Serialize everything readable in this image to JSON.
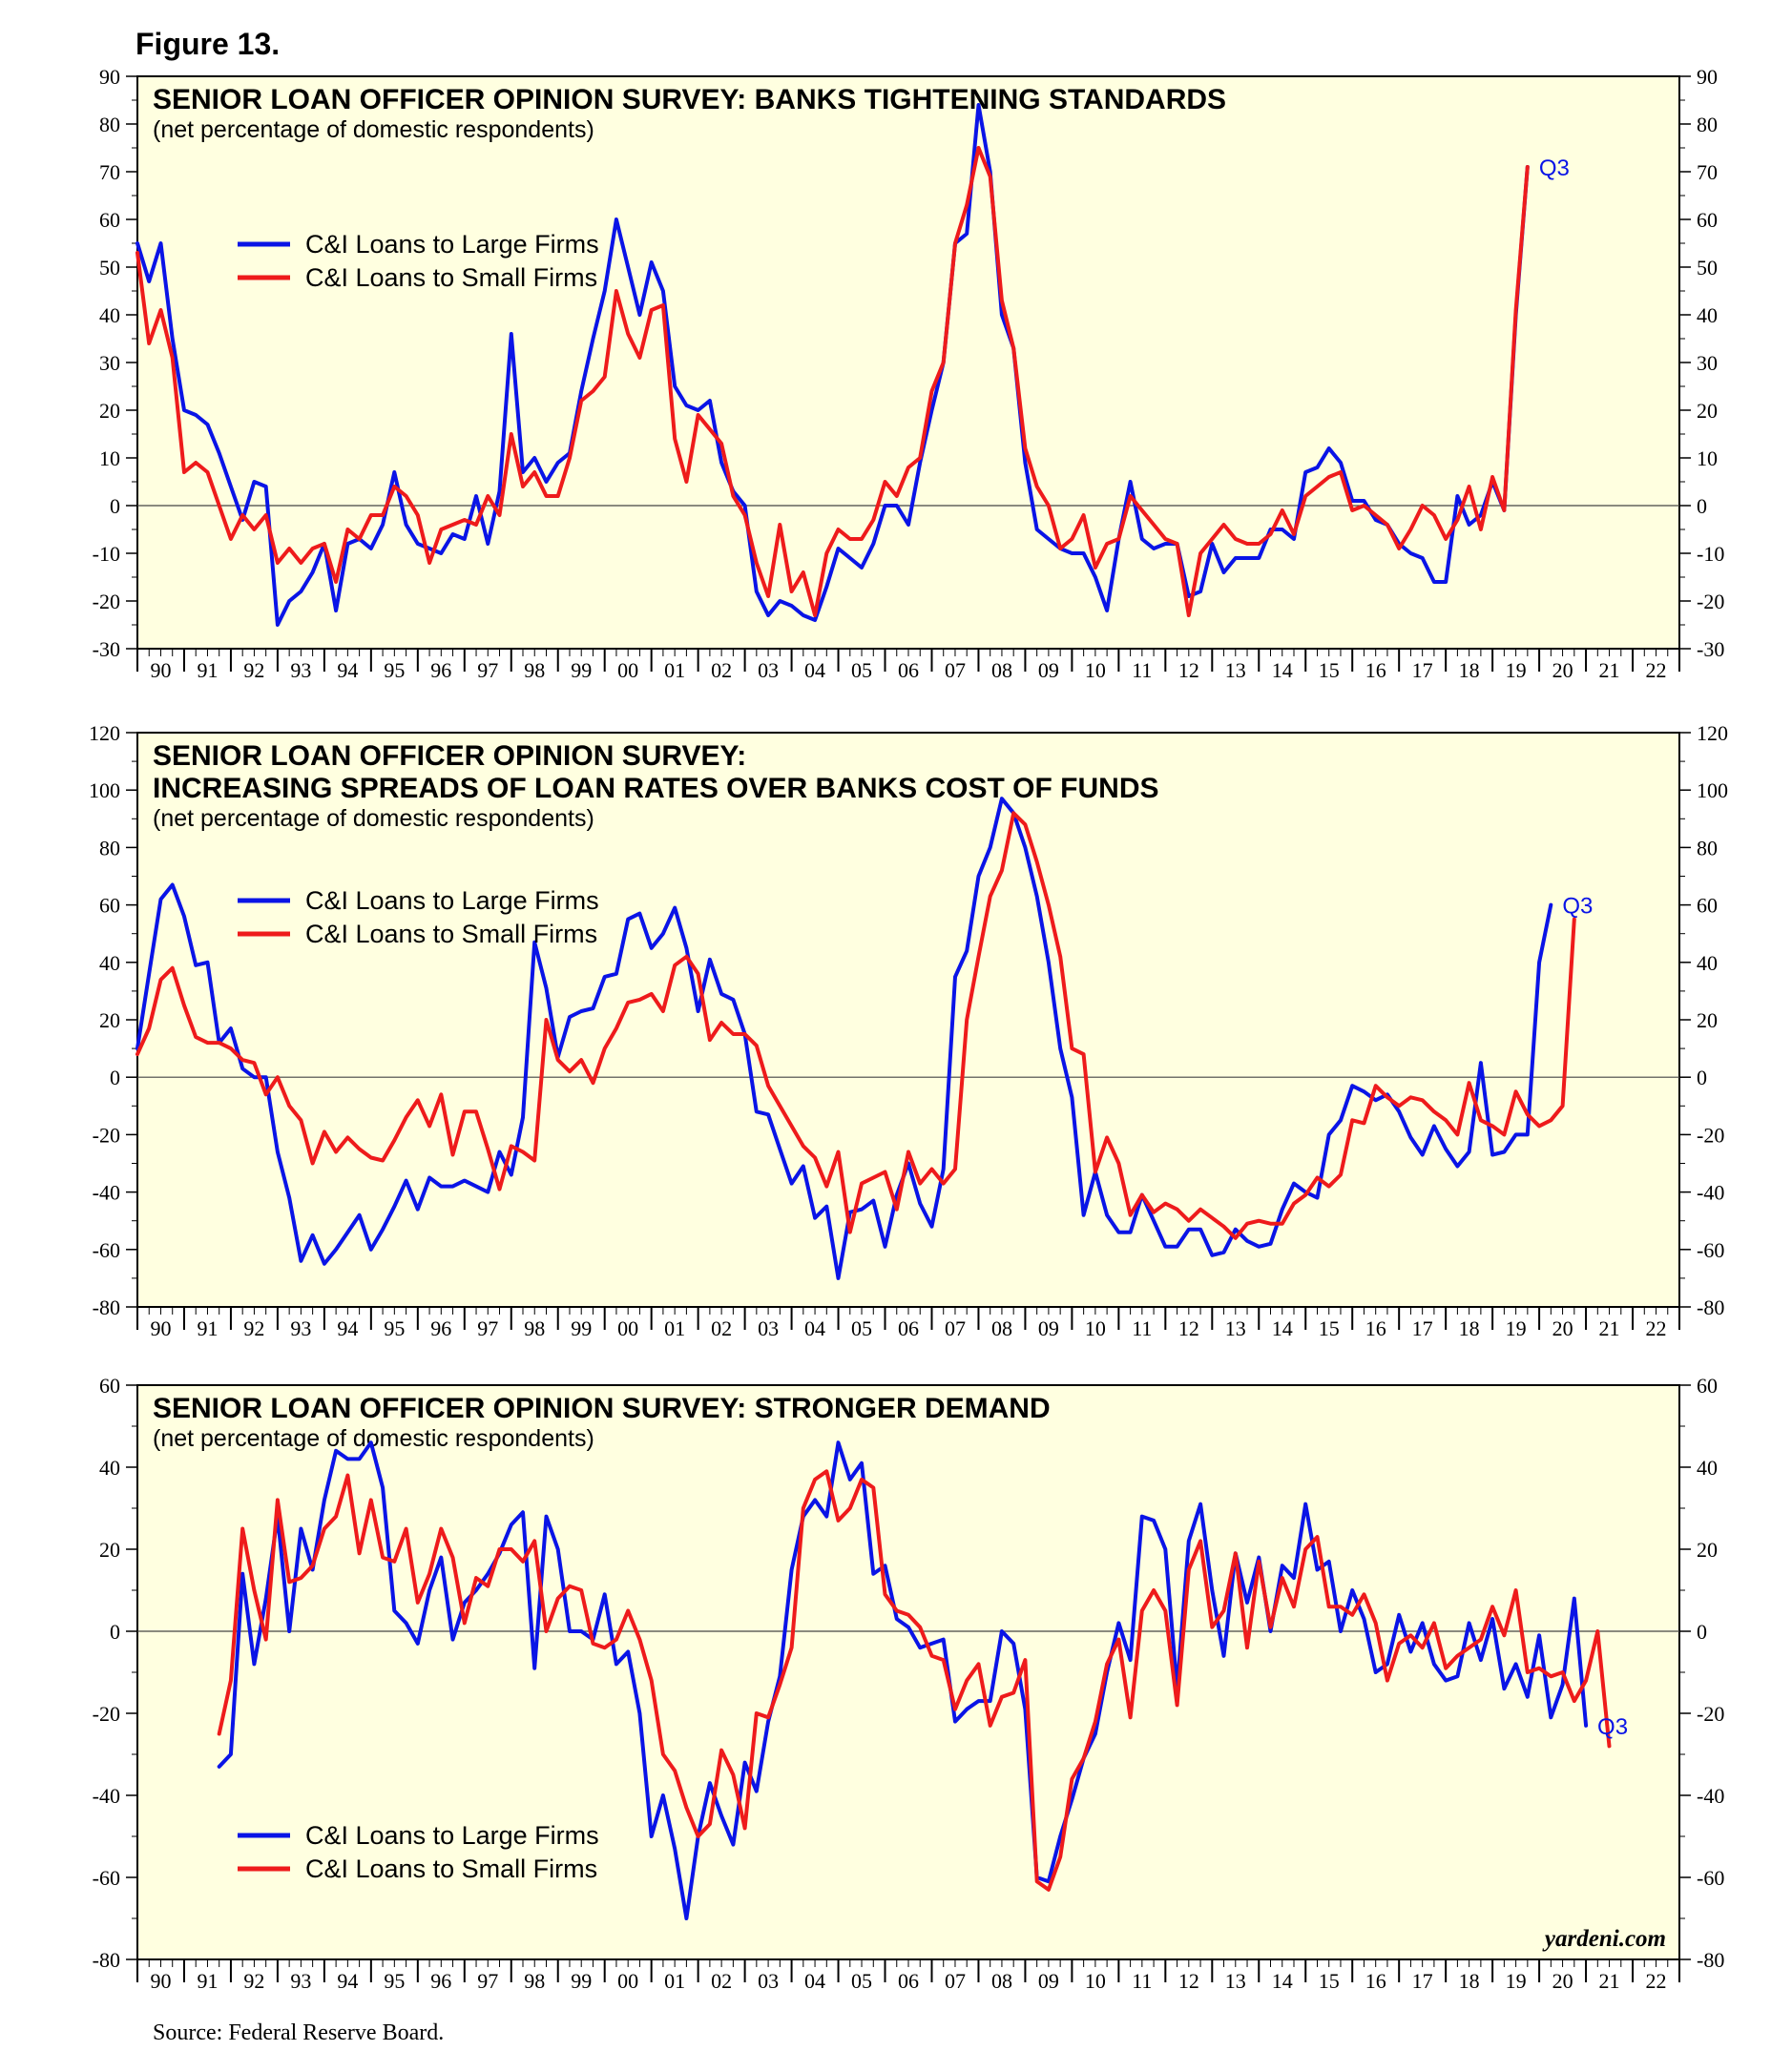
{
  "figure_label": "Figure 13.",
  "source": "Source: Federal Reserve Board.",
  "watermark": "yardeni.com",
  "colors": {
    "large": "#0a14e6",
    "small": "#ee1b1b",
    "plot_bg": "#ffffe0",
    "q3": "#0a14e6"
  },
  "chart_data": [
    {
      "type": "line",
      "title_lines": [
        "SENIOR LOAN OFFICER OPINION SURVEY: BANKS TIGHTENING STANDARDS"
      ],
      "subtitle": "(net percentage of domestic respondents)",
      "ylim": [
        -30,
        90
      ],
      "yticks": [
        -30,
        -20,
        -10,
        0,
        10,
        20,
        30,
        40,
        50,
        60,
        70,
        80,
        90
      ],
      "xlim": [
        1990,
        2023
      ],
      "xtick_labels": [
        "90",
        "91",
        "92",
        "93",
        "94",
        "95",
        "96",
        "97",
        "98",
        "99",
        "00",
        "01",
        "02",
        "03",
        "04",
        "05",
        "06",
        "07",
        "08",
        "09",
        "10",
        "11",
        "12",
        "13",
        "14",
        "15",
        "16",
        "17",
        "18",
        "19",
        "20",
        "21",
        "22"
      ],
      "legend": [
        "C&I Loans to Large Firms",
        "C&I Loans to Small Firms"
      ],
      "legend_position": "top-left",
      "annotation": "Q3",
      "series": [
        {
          "name": "C&I Loans to Large Firms",
          "color": "#0a14e6",
          "start": 1990.0,
          "step": 0.25,
          "values": [
            55,
            47,
            55,
            35,
            20,
            19,
            17,
            11,
            4,
            -3,
            5,
            4,
            -25,
            -20,
            -18,
            -14,
            -8,
            -22,
            -8,
            -7,
            -9,
            -4,
            7,
            -4,
            -8,
            -9,
            -10,
            -6,
            -7,
            2,
            -8,
            3,
            36,
            7,
            10,
            5,
            9,
            11,
            24,
            35,
            45,
            60,
            50,
            40,
            51,
            45,
            25,
            21,
            20,
            22,
            9,
            3,
            0,
            -18,
            -23,
            -20,
            -21,
            -23,
            -24,
            -17,
            -9,
            -11,
            -13,
            -8,
            0,
            0,
            -4,
            9,
            20,
            30,
            55,
            57,
            84,
            70,
            40,
            33,
            9,
            -5,
            -7,
            -9,
            -10,
            -10,
            -15,
            -22,
            -7,
            5,
            -7,
            -9,
            -8,
            -8,
            -19,
            -18,
            -8,
            -14,
            -11,
            -11,
            -11,
            -5,
            -5,
            -7,
            7,
            8,
            12,
            9,
            1,
            1,
            -3,
            -4,
            -8,
            -10,
            -11,
            -16,
            -16,
            2,
            -4,
            -2,
            5,
            -1,
            40,
            71
          ]
        },
        {
          "name": "C&I Loans to Small Firms",
          "color": "#ee1b1b",
          "start": 1990.0,
          "step": 0.25,
          "values": [
            53,
            34,
            41,
            31,
            7,
            9,
            7,
            0,
            -7,
            -2,
            -5,
            -2,
            -12,
            -9,
            -12,
            -9,
            -8,
            -16,
            -5,
            -7,
            -2,
            -2,
            4,
            2,
            -2,
            -12,
            -5,
            -4,
            -3,
            -4,
            2,
            -2,
            15,
            4,
            7,
            2,
            2,
            10,
            22,
            24,
            27,
            45,
            36,
            31,
            41,
            42,
            14,
            5,
            19,
            16,
            13,
            2,
            -2,
            -12,
            -19,
            -4,
            -18,
            -14,
            -23,
            -10,
            -5,
            -7,
            -7,
            -3,
            5,
            2,
            8,
            10,
            24,
            30,
            55,
            63,
            75,
            69,
            43,
            33,
            12,
            4,
            0,
            -9,
            -7,
            -2,
            -13,
            -8,
            -7,
            2,
            -1,
            -4,
            -7,
            -8,
            -23,
            -10,
            -7,
            -4,
            -7,
            -8,
            -8,
            -6,
            -1,
            -6,
            2,
            4,
            6,
            7,
            -1,
            0,
            -2,
            -4,
            -9,
            -5,
            0,
            -2,
            -7,
            -3,
            4,
            -5,
            6,
            -1,
            41,
            71
          ]
        }
      ]
    },
    {
      "type": "line",
      "title_lines": [
        "SENIOR LOAN OFFICER OPINION SURVEY:",
        "INCREASING SPREADS OF LOAN RATES OVER BANKS COST OF FUNDS"
      ],
      "subtitle": "(net percentage of domestic respondents)",
      "ylim": [
        -80,
        120
      ],
      "yticks": [
        -80,
        -60,
        -40,
        -20,
        0,
        20,
        40,
        60,
        80,
        100,
        120
      ],
      "xlim": [
        1990,
        2023
      ],
      "xtick_labels": [
        "90",
        "91",
        "92",
        "93",
        "94",
        "95",
        "96",
        "97",
        "98",
        "99",
        "00",
        "01",
        "02",
        "03",
        "04",
        "05",
        "06",
        "07",
        "08",
        "09",
        "10",
        "11",
        "12",
        "13",
        "14",
        "15",
        "16",
        "17",
        "18",
        "19",
        "20",
        "21",
        "22"
      ],
      "legend": [
        "C&I Loans to Large Firms",
        "C&I Loans to Small Firms"
      ],
      "legend_position": "top-left",
      "annotation": "Q3",
      "series": [
        {
          "name": "C&I Loans to Large Firms",
          "color": "#0a14e6",
          "start": 1990.0,
          "step": 0.25,
          "values": [
            10,
            36,
            62,
            67,
            56,
            39,
            40,
            12,
            17,
            3,
            0,
            0,
            -26,
            -42,
            -64,
            -55,
            -65,
            -60,
            -54,
            -48,
            -60,
            -53,
            -45,
            -36,
            -46,
            -35,
            -38,
            -38,
            -36,
            -38,
            -40,
            -26,
            -34,
            -14,
            47,
            31,
            7,
            21,
            23,
            24,
            35,
            36,
            55,
            57,
            45,
            50,
            59,
            45,
            23,
            41,
            29,
            27,
            15,
            -12,
            -13,
            -25,
            -37,
            -31,
            -49,
            -45,
            -70,
            -47,
            -46,
            -43,
            -59,
            -41,
            -30,
            -44,
            -52,
            -32,
            35,
            44,
            70,
            80,
            97,
            92,
            80,
            63,
            40,
            10,
            -7,
            -48,
            -33,
            -48,
            -54,
            -54,
            -41,
            -50,
            -59,
            -59,
            -53,
            -53,
            -62,
            -61,
            -53,
            -57,
            -59,
            -58,
            -46,
            -37,
            -40,
            -42,
            -20,
            -15,
            -3,
            -5,
            -8,
            -6,
            -12,
            -21,
            -27,
            -17,
            -25,
            -31,
            -26,
            5,
            -27,
            -26,
            -20,
            -20,
            40,
            60
          ]
        },
        {
          "name": "C&I Loans to Small Firms",
          "color": "#ee1b1b",
          "start": 1990.0,
          "step": 0.25,
          "values": [
            8,
            17,
            34,
            38,
            25,
            14,
            12,
            12,
            10,
            6,
            5,
            -6,
            0,
            -10,
            -15,
            -30,
            -19,
            -26,
            -21,
            -25,
            -28,
            -29,
            -22,
            -14,
            -8,
            -17,
            -6,
            -27,
            -12,
            -12,
            -25,
            -39,
            -24,
            -26,
            -29,
            20,
            6,
            2,
            6,
            -2,
            10,
            17,
            26,
            27,
            29,
            23,
            39,
            42,
            36,
            13,
            19,
            15,
            15,
            11,
            -3,
            -10,
            -17,
            -24,
            -28,
            -38,
            -26,
            -54,
            -37,
            -35,
            -33,
            -46,
            -26,
            -37,
            -32,
            -37,
            -32,
            20,
            42,
            63,
            72,
            92,
            88,
            75,
            60,
            42,
            10,
            8,
            -33,
            -21,
            -30,
            -48,
            -41,
            -47,
            -44,
            -46,
            -50,
            -46,
            -49,
            -52,
            -56,
            -51,
            -50,
            -51,
            -51,
            -44,
            -41,
            -35,
            -38,
            -34,
            -15,
            -16,
            -3,
            -7,
            -10,
            -7,
            -8,
            -12,
            -15,
            -20,
            -2,
            -15,
            -17,
            -20,
            -5,
            -13,
            -17,
            -15,
            -10,
            55
          ]
        }
      ]
    },
    {
      "type": "line",
      "title_lines": [
        "SENIOR LOAN OFFICER OPINION SURVEY: STRONGER DEMAND"
      ],
      "subtitle": "(net percentage of domestic respondents)",
      "ylim": [
        -80,
        60
      ],
      "yticks": [
        -80,
        -60,
        -40,
        -20,
        0,
        20,
        40,
        60
      ],
      "xlim": [
        1990,
        2023
      ],
      "xtick_labels": [
        "90",
        "91",
        "92",
        "93",
        "94",
        "95",
        "96",
        "97",
        "98",
        "99",
        "00",
        "01",
        "02",
        "03",
        "04",
        "05",
        "06",
        "07",
        "08",
        "09",
        "10",
        "11",
        "12",
        "13",
        "14",
        "15",
        "16",
        "17",
        "18",
        "19",
        "20",
        "21",
        "22"
      ],
      "legend": [
        "C&I Loans to Large Firms",
        "C&I Loans to Small Firms"
      ],
      "legend_position": "bottom-left",
      "annotation": "Q3",
      "series": [
        {
          "name": "C&I Loans to Large Firms",
          "color": "#0a14e6",
          "start": 1991.75,
          "step": 0.25,
          "values": [
            -33,
            -30,
            14,
            -8,
            8,
            28,
            0,
            25,
            15,
            32,
            44,
            42,
            42,
            46,
            35,
            5,
            2,
            -3,
            10,
            18,
            -2,
            7,
            10,
            14,
            19,
            26,
            29,
            -9,
            28,
            20,
            0,
            0,
            -2,
            9,
            -8,
            -5,
            -20,
            -50,
            -40,
            -53,
            -70,
            -50,
            -37,
            -45,
            -52,
            -32,
            -39,
            -22,
            -11,
            15,
            28,
            32,
            28,
            46,
            37,
            41,
            14,
            16,
            3,
            1,
            -4,
            -3,
            -2,
            -22,
            -19,
            -17,
            -17,
            0,
            -3,
            -19,
            -60,
            -61,
            -50,
            -41,
            -31,
            -25,
            -10,
            2,
            -7,
            28,
            27,
            20,
            -14,
            22,
            31,
            10,
            -6,
            19,
            7,
            18,
            0,
            16,
            13,
            31,
            15,
            17,
            0,
            10,
            3,
            -10,
            -8,
            4,
            -5,
            2,
            -8,
            -12,
            -11,
            2,
            -7,
            3,
            -14,
            -8,
            -16,
            -1,
            -21,
            -13,
            8,
            -23
          ]
        },
        {
          "name": "C&I Loans to Small Firms",
          "color": "#ee1b1b",
          "start": 1991.75,
          "step": 0.25,
          "values": [
            -25,
            -12,
            25,
            10,
            -2,
            32,
            12,
            13,
            16,
            25,
            28,
            38,
            19,
            32,
            18,
            17,
            25,
            7,
            14,
            25,
            18,
            2,
            13,
            11,
            20,
            20,
            17,
            22,
            0,
            8,
            11,
            10,
            -3,
            -4,
            -2,
            5,
            -2,
            -12,
            -30,
            -34,
            -43,
            -50,
            -47,
            -29,
            -35,
            -48,
            -20,
            -21,
            -13,
            -4,
            30,
            37,
            39,
            27,
            30,
            37,
            35,
            9,
            5,
            4,
            1,
            -6,
            -7,
            -19,
            -12,
            -8,
            -23,
            -16,
            -15,
            -7,
            -61,
            -63,
            -55,
            -36,
            -31,
            -22,
            -8,
            -2,
            -21,
            5,
            10,
            5,
            -18,
            15,
            22,
            1,
            5,
            19,
            -4,
            17,
            1,
            13,
            6,
            20,
            23,
            6,
            6,
            4,
            9,
            2,
            -12,
            -3,
            -1,
            -4,
            2,
            -9,
            -6,
            -4,
            -2,
            6,
            -1,
            10,
            -10,
            -9,
            -11,
            -10,
            -17,
            -12,
            0,
            -28
          ]
        }
      ]
    }
  ]
}
